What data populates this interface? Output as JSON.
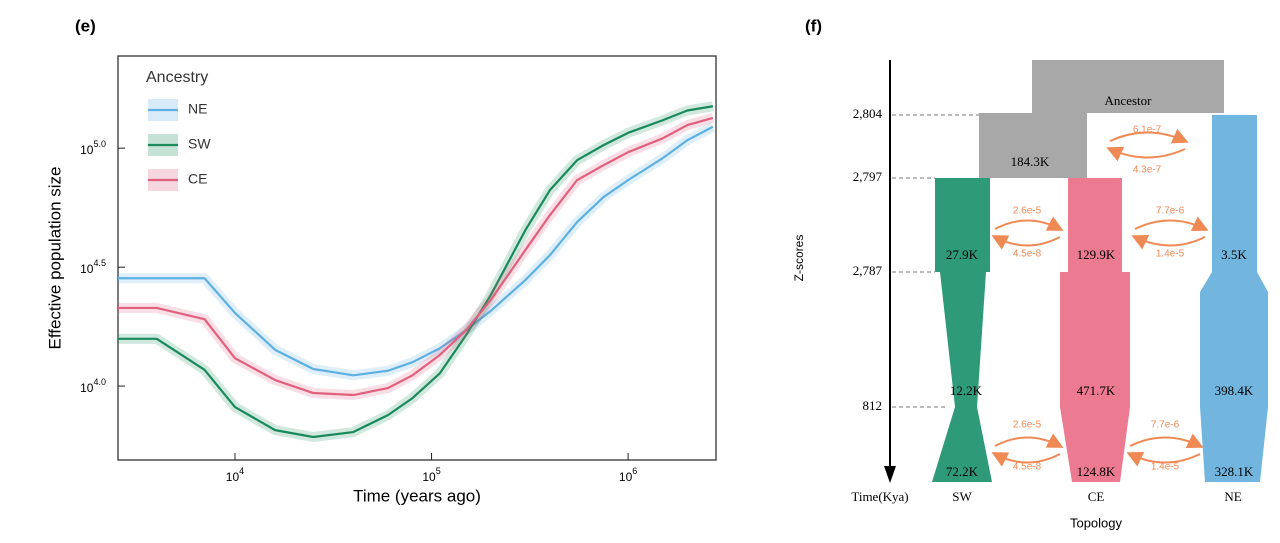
{
  "chart_data": {
    "type": "line",
    "panel": "(e)",
    "xlabel": "Time (years ago)",
    "ylabel": "Effective population size",
    "xscale": "log",
    "yscale": "log",
    "xlim": [
      2540,
      2800000
    ],
    "ylim": [
      4890,
      244000
    ],
    "xticks": [
      {
        "value": 10000,
        "label": "10",
        "exponent": "4"
      },
      {
        "value": 100000,
        "label": "10",
        "exponent": "5"
      },
      {
        "value": 1000000,
        "label": "10",
        "exponent": "6"
      }
    ],
    "yticks": [
      {
        "value": 10000,
        "label": "10",
        "exponent": "4.0"
      },
      {
        "value": 31600,
        "label": "10",
        "exponent": "4.5"
      },
      {
        "value": 100000,
        "label": "10",
        "exponent": "5.0"
      }
    ],
    "legend_title": "Ancestry",
    "legend_position": "upper left",
    "x": [
      2540,
      4000,
      7000,
      10000,
      16000,
      25000,
      40000,
      60000,
      80000,
      110000,
      150000,
      200000,
      300000,
      400000,
      550000,
      750000,
      1000000,
      1500000,
      2000000,
      2700000
    ],
    "series": [
      {
        "name": "NE",
        "color": "#5fb0e2",
        "values": [
          28400,
          28400,
          28400,
          20300,
          14200,
          11800,
          11100,
          11600,
          12600,
          14400,
          17200,
          20700,
          27900,
          35500,
          48900,
          62300,
          73400,
          90800,
          108000,
          123000
        ]
      },
      {
        "name": "SW",
        "color": "#1a8a5c",
        "values": [
          15800,
          15800,
          11700,
          8160,
          6530,
          6110,
          6410,
          7550,
          8900,
          11300,
          16400,
          24100,
          45200,
          66600,
          89000,
          103000,
          116000,
          131000,
          144000,
          150000
        ]
      },
      {
        "name": "CE",
        "color": "#e0607e",
        "values": [
          21300,
          21300,
          19100,
          13100,
          10600,
          9350,
          9170,
          9810,
          11100,
          13500,
          17200,
          23000,
          37300,
          52300,
          73400,
          84800,
          96200,
          110000,
          125000,
          134000
        ]
      }
    ]
  },
  "diagram": {
    "panel": "(f)",
    "axis_label": "Z-scores",
    "time_label": "Time(Kya)",
    "topology_label": "Topology",
    "times": [
      "2,804",
      "2,797",
      "2,787",
      "812"
    ],
    "populations": [
      "SW",
      "CE",
      "NE"
    ],
    "nodes": {
      "ancestor": "Ancestor",
      "ancestor_size": "184.3K",
      "sw": [
        "27.9K",
        "12.2K",
        "72.2K"
      ],
      "ce": [
        "129.9K",
        "471.7K",
        "124.8K"
      ],
      "ne": [
        "3.5K",
        "398.4K",
        "328.1K"
      ]
    },
    "migrations": [
      [
        "6.1e-7",
        "4.3e-7"
      ],
      [
        "2.6e-5",
        "4.5e-8"
      ],
      [
        "7.7e-6",
        "1.4e-5"
      ],
      [
        "2.6e-5",
        "4.5e-8"
      ],
      [
        "7.7e-6",
        "1.4e-5"
      ]
    ]
  }
}
